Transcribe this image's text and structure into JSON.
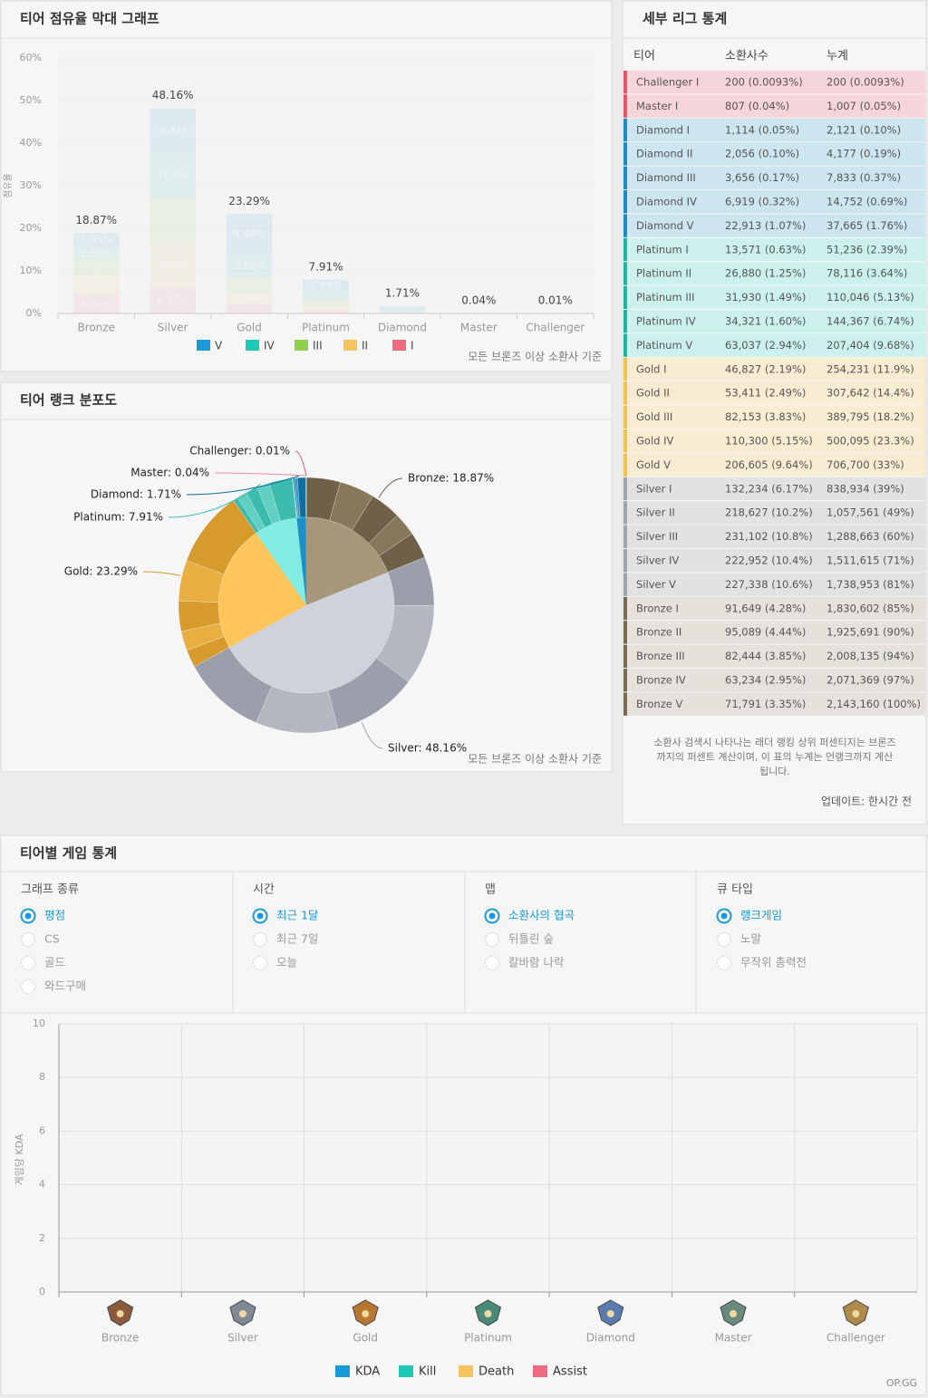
{
  "bar_chart": {
    "type": "bar",
    "stacked": true,
    "title": "티어 점유율 막대 그래프",
    "y_label": "점유율",
    "categories": [
      "Bronze",
      "Silver",
      "Gold",
      "Platinum",
      "Diamond",
      "Master",
      "Challenger"
    ],
    "series": [
      {
        "name": "V",
        "color": "#1a9bd7",
        "values": [
          3.35,
          10.61,
          9.64,
          2.94,
          1.07,
          null,
          null
        ],
        "value_labels": [
          "3.35%",
          "10.61%",
          "9.64%",
          "2.94%",
          null,
          null,
          null
        ]
      },
      {
        "name": "IV",
        "color": "#1fc9b7",
        "values": [
          2.95,
          10.4,
          5.15,
          1.6,
          0.32,
          null,
          null
        ],
        "value_labels": [
          "2.95%",
          "10.4%",
          "5.15%",
          null,
          null,
          null,
          null
        ]
      },
      {
        "name": "III",
        "color": "#8fd14f",
        "values": [
          3.85,
          10.78,
          3.83,
          1.49,
          0.17,
          null,
          null
        ],
        "value_labels": [
          "3.85%",
          "10.78%",
          "3.83%",
          null,
          null,
          null,
          null
        ]
      },
      {
        "name": "II",
        "color": "#f7c35f",
        "values": [
          4.44,
          10.2,
          2.49,
          1.25,
          0.1,
          null,
          null
        ],
        "value_labels": [
          "4.44%",
          "10.2%",
          "2.49%",
          null,
          null,
          null,
          null
        ]
      },
      {
        "name": "I",
        "color": "#f06b7e",
        "values": [
          4.28,
          6.17,
          2.19,
          0.63,
          0.05,
          0.04,
          0.01
        ],
        "value_labels": [
          "4.28%",
          "6.17%",
          null,
          null,
          null,
          null,
          null
        ]
      }
    ],
    "total_labels": [
      "18.87%",
      "48.16%",
      "23.29%",
      "7.91%",
      "1.71%",
      "0.04%",
      "0.01%"
    ],
    "ylim": [
      0,
      60
    ],
    "yticks": [
      {
        "value": 0,
        "label": "0%"
      },
      {
        "value": 10,
        "label": "10%"
      },
      {
        "value": 20,
        "label": "20%"
      },
      {
        "value": 30,
        "label": "30%"
      },
      {
        "value": 40,
        "label": "40%"
      },
      {
        "value": 50,
        "label": "50%"
      },
      {
        "value": 60,
        "label": "60%"
      }
    ],
    "note": "모든 브론즈 이상 소환사 기준"
  },
  "pie_chart": {
    "type": "pie",
    "title": "티어 랭크 분포도",
    "categories": [
      "Bronze",
      "Silver",
      "Gold",
      "Platinum",
      "Diamond",
      "Master",
      "Challenger"
    ],
    "values": [
      18.87,
      48.16,
      23.29,
      7.91,
      1.71,
      0.04,
      0.01
    ],
    "value_labels": [
      "Bronze: 18.87%",
      "Silver: 48.16%",
      "Gold: 23.29%",
      "Platinum: 7.91%",
      "Diamond: 1.71%",
      "Master: 0.04%",
      "Challenger: 0.01%"
    ],
    "colors": [
      "#a6977b",
      "#cfd1dc",
      "#fec65a",
      "#80ece2",
      "#1b8fc6",
      "#5aa6c2",
      "#f07b8c"
    ],
    "ring_colors": [
      [
        "#6f604a",
        "#87785c"
      ],
      [
        "#9c9fab",
        "#b4b6c1"
      ],
      [
        "#d69b2c",
        "#e8ae42"
      ],
      [
        "#3cbcac",
        "#5fd0c2"
      ],
      [
        "#0f6f9e",
        "#2a9ad0"
      ],
      [
        "#f08aa0",
        "#f08aa0"
      ],
      [
        "#e05a6e",
        "#e05a6e"
      ]
    ],
    "note": "모든 브론즈 이상 소환사 기준"
  },
  "league_table": {
    "title": "세부 리그 통계",
    "columns": [
      "티어",
      "소환사수",
      "누계"
    ],
    "rows": [
      [
        "Challenger I",
        "200 (0.0093%)",
        "200 (0.0093%)"
      ],
      [
        "Master I",
        "807 (0.04%)",
        "1,007 (0.05%)"
      ],
      [
        "Diamond I",
        "1,114 (0.05%)",
        "2,121 (0.10%)"
      ],
      [
        "Diamond II",
        "2,056 (0.10%)",
        "4,177 (0.19%)"
      ],
      [
        "Diamond III",
        "3,656 (0.17%)",
        "7,833 (0.37%)"
      ],
      [
        "Diamond IV",
        "6,919 (0.32%)",
        "14,752 (0.69%)"
      ],
      [
        "Diamond V",
        "22,913 (1.07%)",
        "37,665 (1.76%)"
      ],
      [
        "Platinum I",
        "13,571 (0.63%)",
        "51,236 (2.39%)"
      ],
      [
        "Platinum II",
        "26,880 (1.25%)",
        "78,116 (3.64%)"
      ],
      [
        "Platinum III",
        "31,930 (1.49%)",
        "110,046 (5.13%)"
      ],
      [
        "Platinum IV",
        "34,321 (1.60%)",
        "144,367 (6.74%)"
      ],
      [
        "Platinum V",
        "63,037 (2.94%)",
        "207,404 (9.68%)"
      ],
      [
        "Gold I",
        "46,827 (2.19%)",
        "254,231 (11.9%)"
      ],
      [
        "Gold II",
        "53,411 (2.49%)",
        "307,642 (14.4%)"
      ],
      [
        "Gold III",
        "82,153 (3.83%)",
        "389,795 (18.2%)"
      ],
      [
        "Gold IV",
        "110,300 (5.15%)",
        "500,095 (23.3%)"
      ],
      [
        "Gold V",
        "206,605 (9.64%)",
        "706,700 (33%)"
      ],
      [
        "Silver I",
        "132,234 (6.17%)",
        "838,934 (39%)"
      ],
      [
        "Silver II",
        "218,627 (10.2%)",
        "1,057,561 (49%)"
      ],
      [
        "Silver III",
        "231,102 (10.8%)",
        "1,288,663 (60%)"
      ],
      [
        "Silver IV",
        "222,952 (10.4%)",
        "1,511,615 (71%)"
      ],
      [
        "Silver V",
        "227,338 (10.6%)",
        "1,738,953 (81%)"
      ],
      [
        "Bronze I",
        "91,649 (4.28%)",
        "1,830,602 (85%)"
      ],
      [
        "Bronze II",
        "95,089 (4.44%)",
        "1,925,691 (90%)"
      ],
      [
        "Bronze III",
        "82,444 (3.85%)",
        "2,008,135 (94%)"
      ],
      [
        "Bronze IV",
        "63,234 (2.95%)",
        "2,071,369 (97%)"
      ],
      [
        "Bronze V",
        "71,791 (3.35%)",
        "2,143,160 (100%)"
      ]
    ],
    "tier_colors": {
      "Challenger": [
        "#e8546a",
        "#f6d5da"
      ],
      "Master": [
        "#e8546a",
        "#f6d5da"
      ],
      "Diamond": [
        "#1e8bc3",
        "#cde5ee"
      ],
      "Platinum": [
        "#1fb5a5",
        "#ccf0eb"
      ],
      "Gold": [
        "#f2c14e",
        "#f8ecd3"
      ],
      "Silver": [
        "#a0a4ad",
        "#e2e2e4"
      ],
      "Bronze": [
        "#7a6a50",
        "#e5e2dc"
      ]
    },
    "note": [
      "소환사 검색시 나타나는 래더 랭킹 상위 퍼센티지는 브론즈",
      "까지의 퍼센트 계산이며, 이 표의 누계는 언랭크까지 계산",
      "됩니다."
    ],
    "updated": "업데이트: 한시간 전"
  },
  "game_stats": {
    "title": "티어별 게임 통계",
    "filters": [
      {
        "label": "그래프 종류",
        "options": [
          "평점",
          "CS",
          "골드",
          "와드구매"
        ],
        "selected": 0
      },
      {
        "label": "시간",
        "options": [
          "최근 1달",
          "최근 7일",
          "오늘"
        ],
        "selected": 0
      },
      {
        "label": "맵",
        "options": [
          "소환사의 협곡",
          "뒤틀린 숲",
          "칼바람 나락"
        ],
        "selected": 0
      },
      {
        "label": "큐 타입",
        "options": [
          "랭크게임",
          "노말",
          "무작위 총력전"
        ],
        "selected": 0
      }
    ],
    "chart": {
      "type": "line",
      "y_label": "게임당 KDA",
      "categories": [
        "Bronze",
        "Silver",
        "Gold",
        "Platinum",
        "Diamond",
        "Master",
        "Challenger"
      ],
      "series": [
        {
          "name": "KDA",
          "color": "#1a9bd7",
          "values": [
            null,
            null,
            null,
            null,
            null,
            null,
            null
          ]
        },
        {
          "name": "Kill",
          "color": "#1fc9b7",
          "values": [
            null,
            null,
            null,
            null,
            null,
            null,
            null
          ]
        },
        {
          "name": "Death",
          "color": "#f7c35f",
          "values": [
            null,
            null,
            null,
            null,
            null,
            null,
            null
          ]
        },
        {
          "name": "Assist",
          "color": "#f06b7e",
          "values": [
            null,
            null,
            null,
            null,
            null,
            null,
            null
          ]
        }
      ],
      "ylim": [
        0,
        10
      ],
      "yticks": [
        0,
        2,
        4,
        6,
        8,
        10
      ],
      "grid": true
    },
    "footer": "OP.GG"
  }
}
